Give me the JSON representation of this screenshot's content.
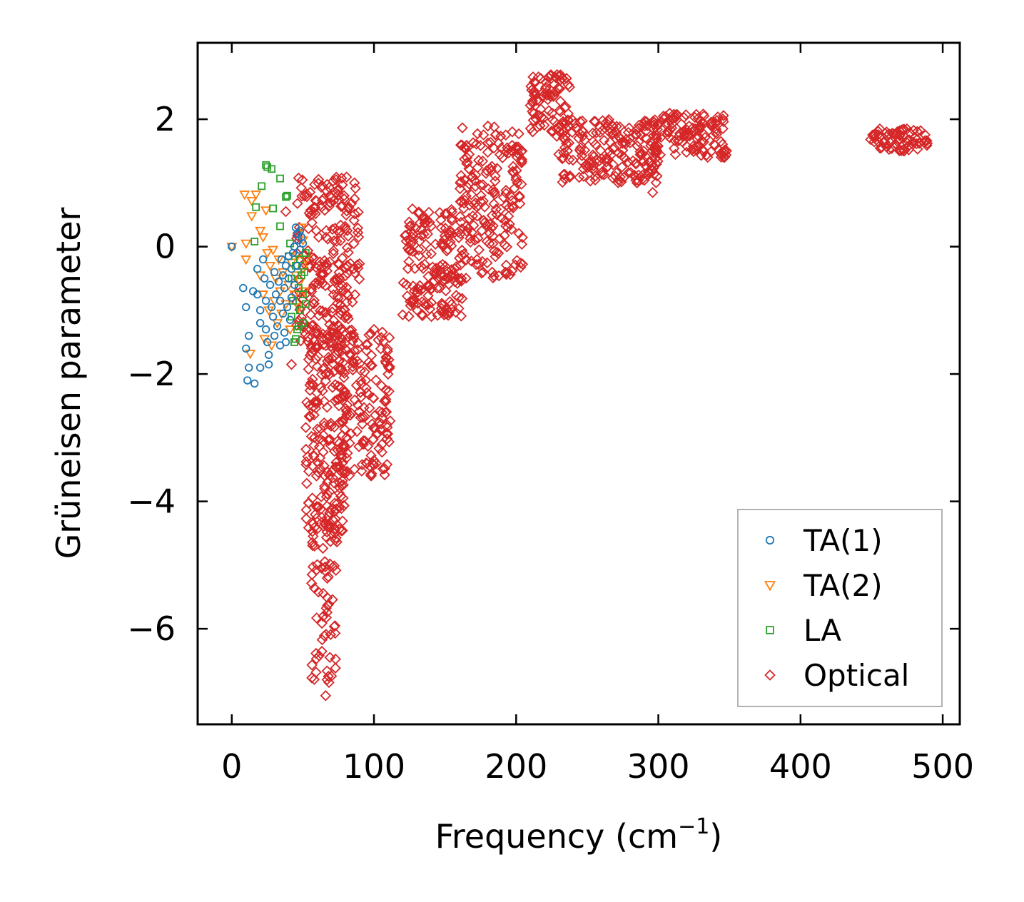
{
  "chart_data": {
    "type": "scatter",
    "title": "",
    "xlabel": "Frequency (cm",
    "xlabel_sup": "−1",
    "xlabel_close": ")",
    "ylabel": "Grüneisen parameter",
    "xlim": [
      -24,
      512
    ],
    "ylim": [
      -7.5,
      3.2
    ],
    "xticks": [
      0,
      100,
      200,
      300,
      400,
      500
    ],
    "yticks": [
      -6,
      -4,
      -2,
      0,
      2
    ],
    "xtick_labels": [
      "0",
      "100",
      "200",
      "300",
      "400",
      "500"
    ],
    "ytick_labels": [
      "−6",
      "−4",
      "−2",
      "0",
      "2"
    ],
    "grid": false,
    "legend_position": "bottom-right",
    "series": [
      {
        "name": "TA(1)",
        "marker": "circle",
        "color": "#1f77b4",
        "points": [
          [
            0,
            0
          ],
          [
            8,
            -0.65
          ],
          [
            10,
            -0.95
          ],
          [
            12,
            -1.4
          ],
          [
            10,
            -1.6
          ],
          [
            12,
            -1.9
          ],
          [
            11,
            -2.1
          ],
          [
            16,
            -2.15
          ],
          [
            15,
            -0.7
          ],
          [
            18,
            -0.75
          ],
          [
            18,
            -0.35
          ],
          [
            20,
            -1.0
          ],
          [
            20,
            -1.2
          ],
          [
            20,
            -1.9
          ],
          [
            22,
            -0.2
          ],
          [
            23,
            -0.5
          ],
          [
            24,
            -0.85
          ],
          [
            24,
            -1.3
          ],
          [
            25,
            -1.5
          ],
          [
            26,
            -1.7
          ],
          [
            26,
            -1.85
          ],
          [
            27,
            -0.6
          ],
          [
            28,
            -0.95
          ],
          [
            29,
            -1.1
          ],
          [
            30,
            -0.4
          ],
          [
            30,
            -1.4
          ],
          [
            31,
            -0.75
          ],
          [
            32,
            -1.25
          ],
          [
            33,
            -0.55
          ],
          [
            34,
            -0.85
          ],
          [
            34,
            -1.55
          ],
          [
            35,
            -0.2
          ],
          [
            36,
            -1.05
          ],
          [
            37,
            -0.65
          ],
          [
            37,
            -1.35
          ],
          [
            38,
            -0.3
          ],
          [
            39,
            -0.95
          ],
          [
            40,
            -0.15
          ],
          [
            40,
            -0.5
          ],
          [
            41,
            -1.15
          ],
          [
            42,
            -0.8
          ],
          [
            42,
            -0.35
          ],
          [
            43,
            -0.1
          ],
          [
            44,
            -0.6
          ],
          [
            44,
            0.0
          ],
          [
            45,
            0.3
          ],
          [
            46,
            0.2
          ],
          [
            46,
            -0.3
          ],
          [
            47,
            0.1
          ],
          [
            48,
            0.25
          ],
          [
            48,
            -0.05
          ],
          [
            49,
            0.15
          ],
          [
            50,
            0.05
          ],
          [
            38,
            -1.5
          ],
          [
            36,
            -0.45
          ]
        ]
      },
      {
        "name": "TA(2)",
        "marker": "triangle-down",
        "color": "#ff7f0e",
        "points": [
          [
            0,
            0
          ],
          [
            9,
            0.82
          ],
          [
            10,
            0.05
          ],
          [
            10,
            -0.2
          ],
          [
            13,
            -1.68
          ],
          [
            14,
            0.48
          ],
          [
            14,
            0.72
          ],
          [
            17,
            0.82
          ],
          [
            20,
            -0.45
          ],
          [
            20,
            0.25
          ],
          [
            22,
            0.15
          ],
          [
            22,
            -0.75
          ],
          [
            23,
            -1.45
          ],
          [
            24,
            0.57
          ],
          [
            25,
            -0.1
          ],
          [
            26,
            -1.0
          ],
          [
            27,
            -0.3
          ],
          [
            28,
            -1.55
          ],
          [
            29,
            -0.05
          ],
          [
            30,
            -0.85
          ],
          [
            31,
            -0.5
          ],
          [
            32,
            -1.2
          ],
          [
            33,
            -0.2
          ],
          [
            34,
            -0.7
          ],
          [
            35,
            -1.05
          ],
          [
            36,
            -0.4
          ],
          [
            38,
            -0.9
          ],
          [
            40,
            -0.6
          ],
          [
            41,
            -1.3
          ],
          [
            42,
            -0.25
          ],
          [
            44,
            -0.75
          ],
          [
            45,
            -0.45
          ],
          [
            46,
            -0.15
          ],
          [
            47,
            -0.95
          ],
          [
            48,
            -0.55
          ],
          [
            49,
            0.3
          ],
          [
            50,
            -0.35
          ],
          [
            51,
            -0.7
          ],
          [
            52,
            -0.2
          ],
          [
            50,
            0.1
          ]
        ]
      },
      {
        "name": "LA",
        "marker": "square",
        "color": "#2ca02c",
        "points": [
          [
            16,
            0.08
          ],
          [
            17,
            0.62
          ],
          [
            21,
            0.95
          ],
          [
            24,
            1.28
          ],
          [
            25,
            1.25
          ],
          [
            28,
            1.22
          ],
          [
            29,
            0.6
          ],
          [
            34,
            1.07
          ],
          [
            34,
            0.32
          ],
          [
            38,
            0.78
          ],
          [
            39,
            0.8
          ],
          [
            40,
            -0.15
          ],
          [
            41,
            0.05
          ],
          [
            42,
            -0.5
          ],
          [
            42,
            -1.1
          ],
          [
            43,
            -0.85
          ],
          [
            44,
            -1.5
          ],
          [
            45,
            -0.3
          ],
          [
            46,
            -1.3
          ],
          [
            47,
            -0.65
          ],
          [
            48,
            -0.2
          ],
          [
            48,
            -1.0
          ],
          [
            49,
            -0.45
          ],
          [
            50,
            -0.75
          ],
          [
            50,
            -1.2
          ],
          [
            51,
            -0.4
          ],
          [
            52,
            -0.9
          ],
          [
            52,
            -0.1
          ],
          [
            45,
            -1.45
          ],
          [
            47,
            -1.25
          ]
        ]
      },
      {
        "name": "Optical",
        "marker": "diamond",
        "color": "#d62728",
        "regions": [
          {
            "x": [
              45,
              90
            ],
            "y": [
              -1.6,
              1.1
            ],
            "n": 220
          },
          {
            "x": [
              52,
              80
            ],
            "y": [
              -4.5,
              -1.0
            ],
            "n": 200
          },
          {
            "x": [
              56,
              74
            ],
            "y": [
              -6.9,
              -4.0
            ],
            "n": 70
          },
          {
            "x": [
              74,
              112
            ],
            "y": [
              -3.6,
              -1.3
            ],
            "n": 170
          },
          {
            "x": [
              120,
              162
            ],
            "y": [
              -1.1,
              0.6
            ],
            "n": 170
          },
          {
            "x": [
              160,
              205
            ],
            "y": [
              -0.5,
              1.9
            ],
            "n": 200
          },
          {
            "x": [
              210,
              238
            ],
            "y": [
              1.8,
              2.7
            ],
            "n": 80
          },
          {
            "x": [
              228,
              300
            ],
            "y": [
              1.0,
              2.0
            ],
            "n": 200
          },
          {
            "x": [
              298,
              348
            ],
            "y": [
              1.4,
              2.1
            ],
            "n": 120
          },
          {
            "x": [
              448,
              490
            ],
            "y": [
              1.5,
              1.85
            ],
            "n": 70
          }
        ],
        "outliers": [
          [
            66,
            -7.05
          ],
          [
            67,
            -6.8
          ],
          [
            69,
            -6.45
          ],
          [
            38,
            0.55
          ],
          [
            42,
            -1.85
          ],
          [
            79,
            0.8
          ],
          [
            82,
            0.6
          ],
          [
            100,
            -1.3
          ],
          [
            98,
            -3.6
          ],
          [
            197,
            1.5
          ],
          [
            230,
            1.45
          ],
          [
            285,
            1.0
          ],
          [
            296,
            0.85
          ]
        ]
      }
    ]
  }
}
